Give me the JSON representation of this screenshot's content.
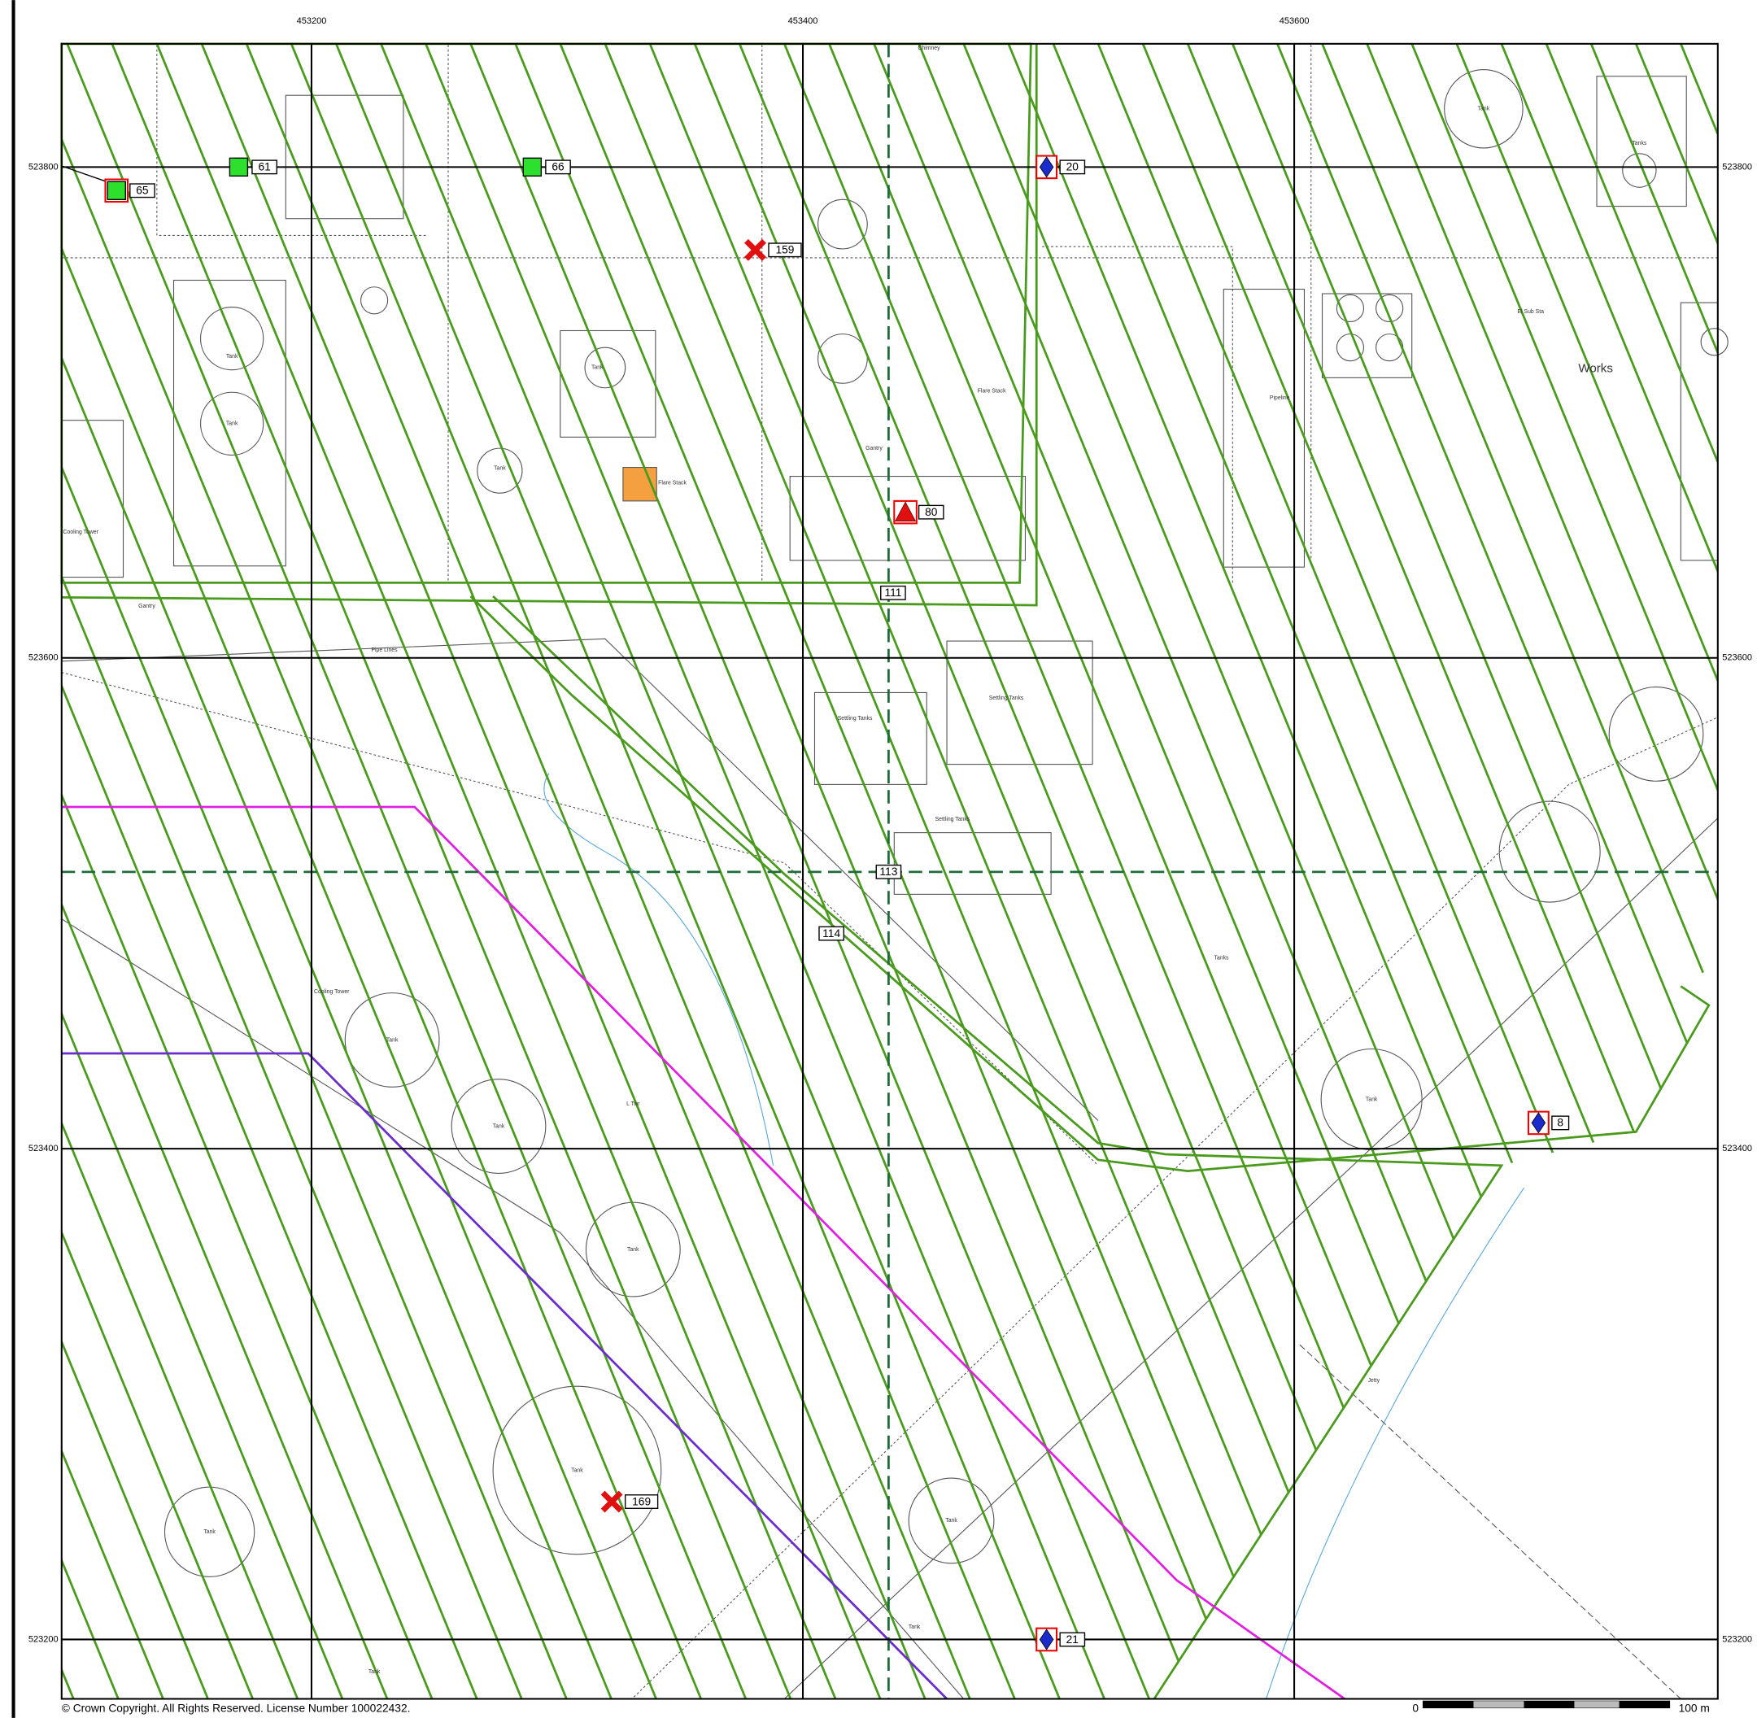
{
  "grid": {
    "eastings": [
      453200,
      453400,
      453600
    ],
    "northings": [
      523800,
      523600,
      523400,
      523200
    ]
  },
  "markers": [
    {
      "label": "65",
      "symbol": "square"
    },
    {
      "label": "61",
      "symbol": "square"
    },
    {
      "label": "66",
      "symbol": "square"
    },
    {
      "label": "20",
      "symbol": "diamond"
    },
    {
      "label": "159",
      "symbol": "cross"
    },
    {
      "label": "80",
      "symbol": "triangle"
    },
    {
      "label": "8",
      "symbol": "diamond"
    },
    {
      "label": "169",
      "symbol": "cross"
    },
    {
      "label": "21",
      "symbol": "diamond"
    }
  ],
  "line_labels": [
    "111",
    "113",
    "114"
  ],
  "map_labels": [
    "Tank",
    "Tanks",
    "Tank",
    "Tank",
    "Tank",
    "Tank",
    "Works",
    "Cooling Tower",
    "Settling Tanks",
    "Settling Tanks",
    "Settling Tanks",
    "Pipeline",
    "Tank",
    "Tank",
    "Tank",
    "Tank",
    "Tank",
    "Tank",
    "Tank",
    "Tank",
    "Cooling Tower",
    "Flare Stack",
    "Tanks",
    "Jetty",
    "Chimney",
    "Gantry",
    "Gantry",
    "Flare Stack",
    "Tank",
    "Pipe Lines",
    "El Sub Sta",
    "L Twr"
  ],
  "copyright": "© Crown Copyright. All Rights Reserved. License Number 100022432.",
  "scale_bar": {
    "start": "0",
    "end": "100 m"
  }
}
